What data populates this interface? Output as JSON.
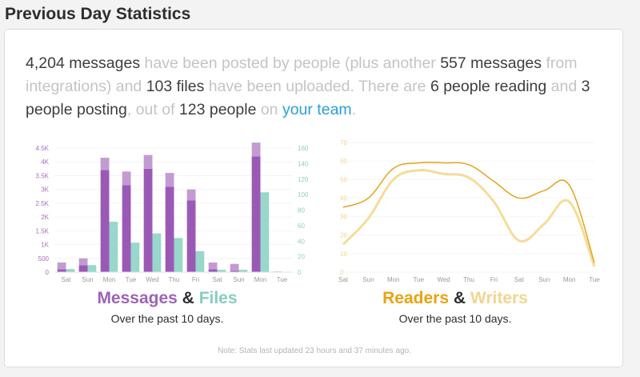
{
  "page_title": "Previous Day Statistics",
  "summary": {
    "messages": "4,204 messages",
    "t1": " have been posted by people (plus another ",
    "integration_messages": "557 messages",
    "t2": " from integrations) and ",
    "files": "103 files",
    "t3": " have been uploaded. There are ",
    "readers": "6 people reading",
    "t4": " and ",
    "posters": "3 people posting",
    "t5": ", out of ",
    "total": "123 people",
    "t6": " on ",
    "team_link": "your team",
    "t7": "."
  },
  "colors": {
    "messages_dark": "#9b59b6",
    "messages_light": "#c39bd3",
    "files": "#98d7cb",
    "readers": "#e3a21a",
    "writers": "#f5dc99"
  },
  "chart_data": [
    {
      "type": "bar",
      "categories": [
        "Sat",
        "Sun",
        "Mon",
        "Tue",
        "Wed",
        "Thu",
        "Fri",
        "Sat",
        "Sun",
        "Mon",
        "Tue"
      ],
      "series": [
        {
          "name": "Messages",
          "axis": "left",
          "stacked": true,
          "values": [
            100,
            250,
            3700,
            3150,
            3750,
            3100,
            2600,
            100,
            50,
            4200,
            20
          ]
        },
        {
          "axis": "left",
          "stacked": true,
          "values": [
            250,
            250,
            450,
            500,
            500,
            500,
            400,
            250,
            250,
            500,
            0
          ]
        },
        {
          "name": "Files",
          "axis": "right",
          "values": [
            4,
            9,
            65,
            38,
            50,
            44,
            27,
            3,
            3,
            103,
            0
          ]
        }
      ],
      "yticks_left": [
        "0",
        "500",
        "1K",
        "1.5K",
        "2K",
        "2.5K",
        "3K",
        "3.5K",
        "4K",
        "4.5K"
      ],
      "yticks_right": [
        "0",
        "20",
        "40",
        "60",
        "80",
        "100",
        "120",
        "140",
        "160"
      ],
      "ylim_left": [
        0,
        4500
      ],
      "ylim_right": [
        0,
        160
      ],
      "title_parts": {
        "a": "Messages",
        "amp": " & ",
        "b": "Files"
      },
      "subtitle": "Over the past 10 days."
    },
    {
      "type": "line",
      "categories": [
        "Sat",
        "Sun",
        "Mon",
        "Tue",
        "Wed",
        "Thu",
        "Fri",
        "Sat",
        "Sun",
        "Mon",
        "Tue"
      ],
      "series": [
        {
          "name": "Readers",
          "values": [
            35,
            40,
            56,
            59,
            59,
            58,
            49,
            40,
            44,
            47,
            5
          ]
        },
        {
          "name": "Writers",
          "values": [
            15,
            29,
            50,
            55,
            53,
            51,
            38,
            17,
            26,
            38,
            3
          ]
        }
      ],
      "yticks": [
        "0",
        "10",
        "20",
        "30",
        "40",
        "50",
        "60",
        "70"
      ],
      "ylim": [
        0,
        70
      ],
      "title_parts": {
        "a": "Readers",
        "amp": " & ",
        "b": "Writers"
      },
      "subtitle": "Over the past 10 days."
    }
  ],
  "note": "Note: Stats last updated 23 hours and 37 minutes ago."
}
